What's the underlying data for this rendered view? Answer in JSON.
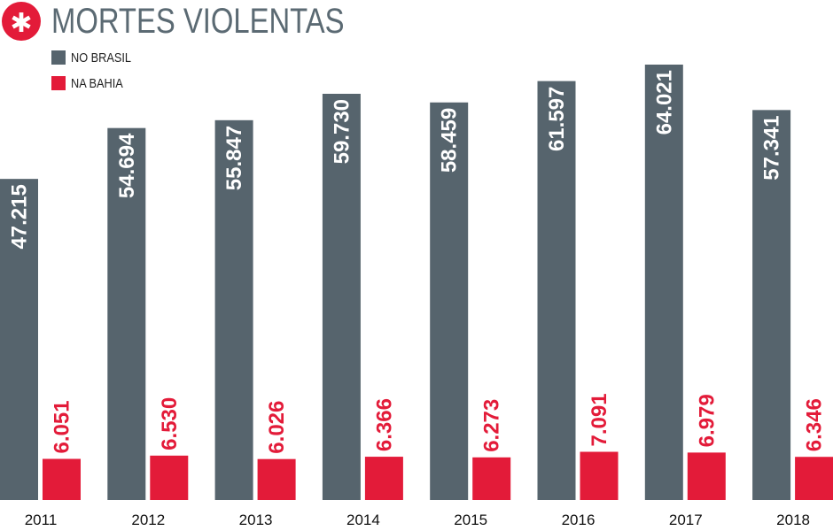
{
  "header": {
    "icon": "asterisk-icon",
    "title": "MORTES VIOLENTAS"
  },
  "colors": {
    "brasil": "#56646d",
    "bahia": "#e31b39",
    "brasil_label": "#ffffff",
    "bahia_label": "#e31b39"
  },
  "chart_data": {
    "type": "bar",
    "title": "MORTES VIOLENTAS",
    "xlabel": "",
    "ylabel": "",
    "categories": [
      "2011",
      "2012",
      "2013",
      "2014",
      "2015",
      "2016",
      "2017",
      "2018"
    ],
    "ylim": [
      0,
      70000
    ],
    "legend_placement": "top-left",
    "grid": false,
    "series": [
      {
        "name": "NO BRASIL",
        "values": [
          47215,
          54694,
          55847,
          59730,
          58459,
          61597,
          64021,
          57341
        ],
        "labels": [
          "47.215",
          "54.694",
          "55.847",
          "59.730",
          "58.459",
          "61.597",
          "64.021",
          "57.341"
        ]
      },
      {
        "name": "NA BAHIA",
        "values": [
          6051,
          6530,
          6026,
          6366,
          6273,
          7091,
          6979,
          6346
        ],
        "labels": [
          "6.051",
          "6.530",
          "6.026",
          "6.366",
          "6.273",
          "7.091",
          "6.979",
          "6.346"
        ]
      }
    ]
  }
}
